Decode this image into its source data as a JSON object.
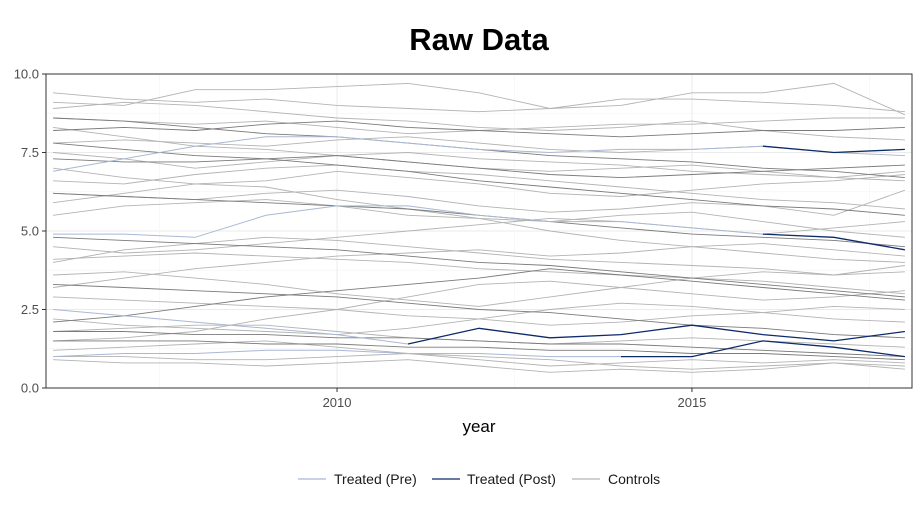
{
  "chart_data": {
    "type": "line",
    "title": "Raw Data",
    "xlabel": "year",
    "ylabel": "",
    "xlim": [
      2005.9,
      2018.1
    ],
    "ylim": [
      0,
      10
    ],
    "x_ticks": [
      2010,
      2015
    ],
    "y_ticks": [
      0,
      2.5,
      5,
      7.5,
      10
    ],
    "y_tick_labels": [
      "0.0",
      "2.5",
      "5.0",
      "7.5",
      "10.0"
    ],
    "grid": true,
    "legend_position": "bottom",
    "legend": [
      {
        "label": "Treated (Pre)",
        "color": "#a9b8d4"
      },
      {
        "label": "Treated (Post)",
        "color": "#0d2a6b"
      },
      {
        "label": "Controls",
        "color": "#b3b3b3"
      }
    ],
    "colors": {
      "pre": "#a9b8d4",
      "post": "#0d2a6b",
      "controls": "#b3b3b3",
      "control_dark": "#7a7a7a"
    },
    "x": [
      2006,
      2007,
      2008,
      2009,
      2010,
      2011,
      2012,
      2013,
      2014,
      2015,
      2016,
      2017,
      2018
    ],
    "treated": [
      {
        "treat_year": 2016,
        "values": [
          6.9,
          7.3,
          7.7,
          8.0,
          8.0,
          7.8,
          7.6,
          7.5,
          7.6,
          7.6,
          7.7,
          7.5,
          7.6
        ]
      },
      {
        "treat_year": 2011,
        "values": [
          2.5,
          2.3,
          2.1,
          1.9,
          1.7,
          1.4,
          1.9,
          1.6,
          1.7,
          2.0,
          1.7,
          1.5,
          1.8
        ]
      },
      {
        "treat_year": 2014,
        "values": [
          1.0,
          1.1,
          1.1,
          1.2,
          1.2,
          1.1,
          1.1,
          1.0,
          1.0,
          1.0,
          1.5,
          1.3,
          1.0
        ]
      },
      {
        "treat_year": 2016,
        "values": [
          4.9,
          4.9,
          4.8,
          5.5,
          5.8,
          5.8,
          5.5,
          5.3,
          5.3,
          5.1,
          4.9,
          4.8,
          4.4
        ]
      }
    ],
    "controls": [
      [
        9.4,
        9.2,
        9.1,
        9.2,
        9.0,
        8.9,
        8.8,
        8.9,
        9.0,
        9.4,
        9.4,
        9.7,
        8.7
      ],
      [
        9.1,
        9.0,
        9.5,
        9.5,
        9.6,
        9.7,
        9.4,
        8.9,
        9.2,
        9.2,
        9.1,
        9.0,
        8.8
      ],
      [
        8.6,
        8.5,
        8.4,
        8.5,
        8.3,
        8.1,
        8.2,
        8.3,
        8.4,
        8.4,
        8.5,
        8.6,
        8.6
      ],
      [
        7.8,
        7.9,
        7.8,
        7.7,
        7.9,
        8.0,
        7.8,
        7.6,
        7.5,
        7.6,
        7.7,
        7.5,
        7.4
      ],
      [
        7.5,
        7.3,
        7.0,
        7.2,
        7.4,
        7.2,
        7.0,
        6.9,
        7.0,
        7.1,
        6.9,
        6.7,
        6.6
      ],
      [
        7.0,
        6.7,
        6.5,
        6.6,
        6.9,
        6.7,
        6.5,
        6.2,
        6.1,
        6.3,
        6.5,
        6.6,
        6.8
      ],
      [
        6.2,
        6.1,
        6.0,
        6.2,
        6.3,
        6.1,
        5.8,
        5.6,
        5.7,
        5.9,
        5.8,
        5.5,
        6.3
      ],
      [
        5.5,
        5.8,
        5.9,
        6.0,
        5.8,
        5.5,
        5.4,
        5.3,
        5.5,
        5.6,
        5.3,
        5.0,
        4.8
      ],
      [
        4.1,
        4.2,
        4.3,
        4.2,
        4.1,
        4.0,
        3.8,
        3.7,
        3.6,
        3.5,
        3.4,
        3.2,
        3.0
      ],
      [
        4.0,
        4.4,
        4.6,
        4.8,
        4.7,
        4.5,
        4.3,
        4.1,
        4.0,
        3.9,
        3.8,
        3.6,
        3.7
      ],
      [
        3.2,
        3.5,
        3.8,
        4.0,
        4.2,
        4.3,
        4.4,
        4.2,
        4.3,
        4.5,
        4.6,
        4.4,
        4.2
      ],
      [
        2.9,
        2.8,
        2.7,
        2.6,
        2.5,
        2.3,
        2.2,
        2.0,
        2.1,
        2.3,
        2.4,
        2.6,
        2.5
      ],
      [
        1.8,
        1.9,
        2.0,
        2.0,
        1.8,
        1.6,
        1.5,
        1.4,
        1.5,
        1.6,
        1.5,
        1.4,
        1.3
      ],
      [
        1.2,
        1.3,
        1.4,
        1.5,
        1.3,
        1.1,
        0.9,
        0.7,
        0.8,
        0.9,
        0.8,
        0.9,
        0.8
      ],
      [
        1.0,
        1.0,
        0.9,
        0.9,
        1.0,
        1.1,
        1.0,
        0.9,
        0.7,
        0.6,
        0.7,
        0.8,
        0.6
      ],
      [
        1.5,
        1.6,
        1.8,
        2.2,
        2.5,
        2.9,
        3.3,
        3.4,
        3.2,
        3.0,
        2.8,
        2.9,
        3.1
      ],
      [
        3.6,
        3.7,
        3.5,
        3.3,
        3.0,
        2.8,
        2.6,
        2.9,
        3.2,
        3.5,
        3.7,
        3.6,
        3.9
      ],
      [
        8.9,
        9.1,
        9.0,
        8.8,
        8.6,
        8.5,
        8.3,
        8.2,
        8.3,
        8.5,
        8.2,
        8.0,
        7.9
      ],
      [
        8.3,
        8.0,
        7.7,
        7.6,
        7.4,
        7.5,
        7.3,
        7.2,
        7.1,
        6.9,
        6.8,
        6.7,
        6.9
      ],
      [
        6.6,
        6.5,
        6.8,
        7.0,
        7.1,
        6.9,
        6.8,
        6.6,
        6.4,
        6.2,
        6.0,
        5.9,
        5.7
      ],
      [
        2.2,
        2.0,
        1.9,
        1.8,
        1.7,
        1.9,
        2.2,
        2.5,
        2.7,
        2.6,
        2.4,
        2.2,
        2.1
      ],
      [
        0.9,
        0.8,
        0.8,
        0.7,
        0.8,
        0.9,
        0.7,
        0.5,
        0.6,
        0.5,
        0.6,
        0.8,
        0.7
      ],
      [
        5.9,
        6.2,
        6.5,
        6.4,
        6.0,
        5.7,
        5.4,
        5.0,
        4.7,
        4.5,
        4.3,
        4.1,
        4.0
      ],
      [
        4.5,
        4.3,
        4.4,
        4.6,
        4.8,
        5.0,
        5.2,
        5.4,
        5.3,
        5.1,
        4.9,
        5.1,
        5.3
      ]
    ],
    "controls_dark": [
      [
        8.6,
        8.5,
        8.3,
        8.1,
        8.0,
        7.8,
        7.6,
        7.4,
        7.3,
        7.2,
        7.0,
        6.9,
        6.7
      ],
      [
        7.8,
        7.6,
        7.4,
        7.3,
        7.1,
        6.9,
        6.6,
        6.4,
        6.2,
        6.0,
        5.8,
        5.7,
        5.5
      ],
      [
        6.2,
        6.1,
        6.0,
        5.9,
        5.8,
        5.7,
        5.5,
        5.3,
        5.1,
        4.9,
        4.8,
        4.7,
        4.5
      ],
      [
        4.8,
        4.7,
        4.6,
        4.5,
        4.4,
        4.2,
        4.0,
        3.9,
        3.7,
        3.5,
        3.3,
        3.1,
        2.9
      ],
      [
        3.3,
        3.2,
        3.1,
        3.0,
        2.9,
        2.7,
        2.5,
        2.4,
        2.2,
        2.0,
        1.9,
        1.7,
        1.6
      ],
      [
        1.8,
        1.8,
        1.7,
        1.7,
        1.6,
        1.6,
        1.5,
        1.4,
        1.4,
        1.3,
        1.2,
        1.1,
        1.0
      ],
      [
        1.5,
        1.5,
        1.5,
        1.4,
        1.4,
        1.3,
        1.3,
        1.2,
        1.2,
        1.1,
        1.1,
        1.0,
        0.9
      ],
      [
        7.3,
        7.2,
        7.2,
        7.3,
        7.4,
        7.2,
        7.0,
        6.8,
        6.7,
        6.8,
        6.9,
        7.0,
        7.1
      ],
      [
        2.1,
        2.3,
        2.6,
        2.9,
        3.1,
        3.3,
        3.5,
        3.8,
        3.6,
        3.4,
        3.2,
        3.0,
        2.8
      ],
      [
        8.2,
        8.3,
        8.2,
        8.4,
        8.5,
        8.3,
        8.2,
        8.1,
        8.0,
        8.1,
        8.2,
        8.2,
        8.3
      ]
    ]
  }
}
